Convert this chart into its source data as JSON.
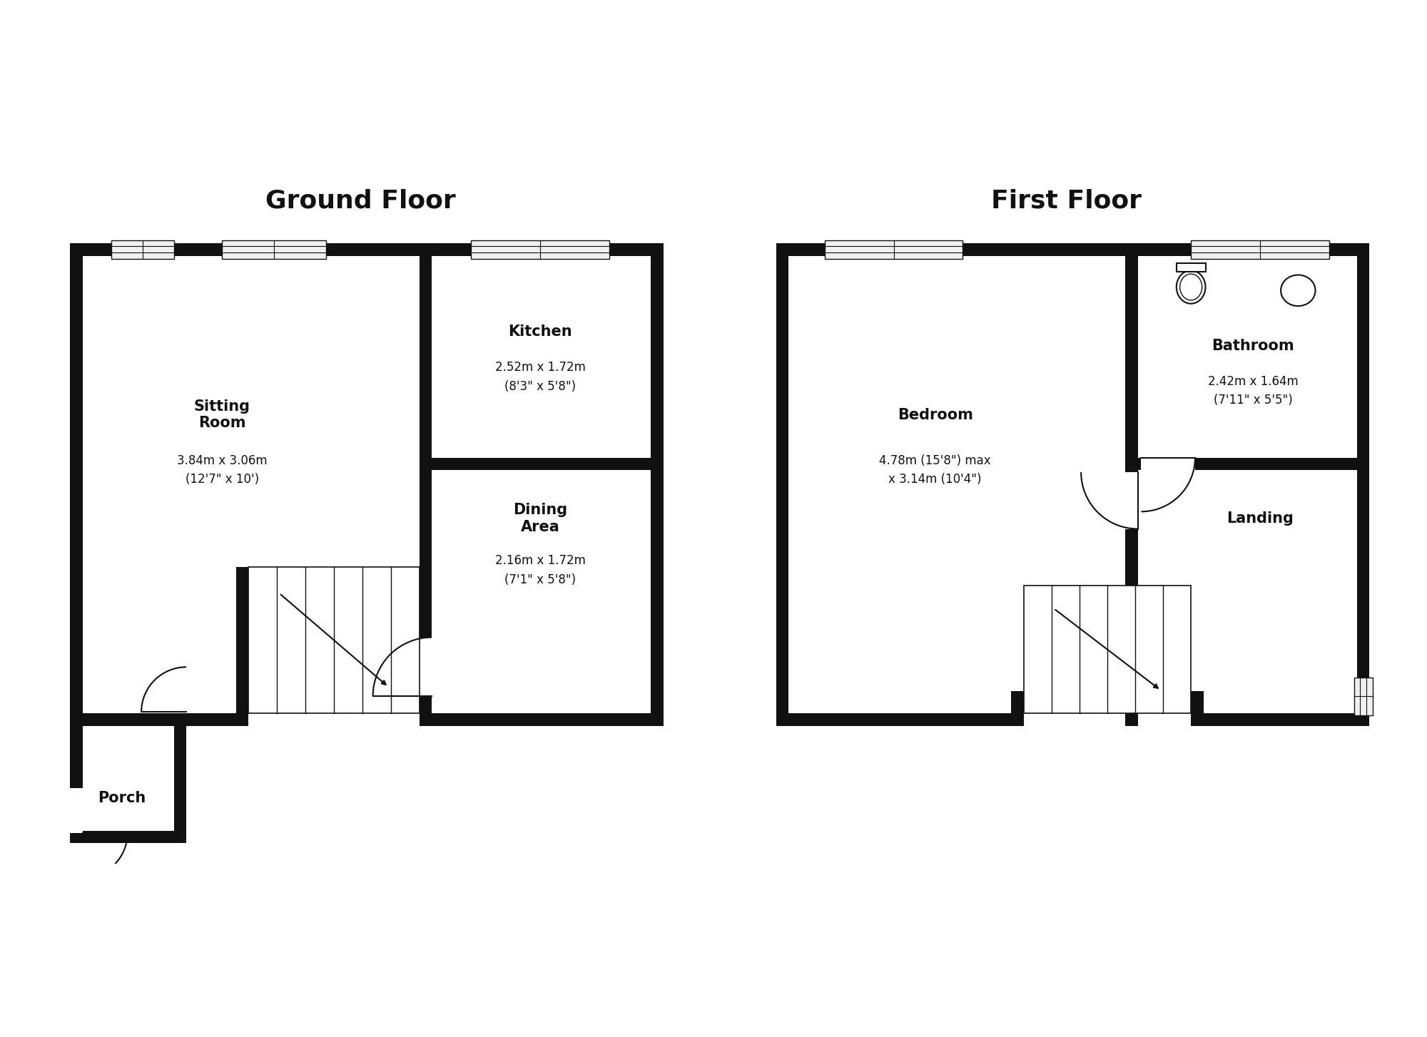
{
  "bg_color": "#ffffff",
  "wall_color": "#111111",
  "wt": 0.18,
  "ground_floor_title": "Ground Floor",
  "first_floor_title": "First Floor",
  "title_fontsize": 26,
  "room_name_fontsize": 15,
  "room_dim_fontsize": 12,
  "text_color": "#111111",
  "rooms": {
    "sitting_room": {
      "name": "Sitting\nRoom",
      "dims": "3.84m x 3.06m\n(12'7\" x 10')"
    },
    "kitchen": {
      "name": "Kitchen",
      "dims": "2.52m x 1.72m\n(8'3\" x 5'8\")"
    },
    "dining_area": {
      "name": "Dining\nArea",
      "dims": "2.16m x 1.72m\n(7'1\" x 5'8\")"
    },
    "porch": {
      "name": "Porch",
      "dims": ""
    },
    "bedroom": {
      "name": "Bedroom",
      "dims": "4.78m (15'8\") max\nx 3.14m (10'4\")"
    },
    "bathroom": {
      "name": "Bathroom",
      "dims": "2.42m x 1.64m\n(7'11\" x 5'5\")"
    },
    "landing": {
      "name": "Landing",
      "dims": ""
    }
  }
}
